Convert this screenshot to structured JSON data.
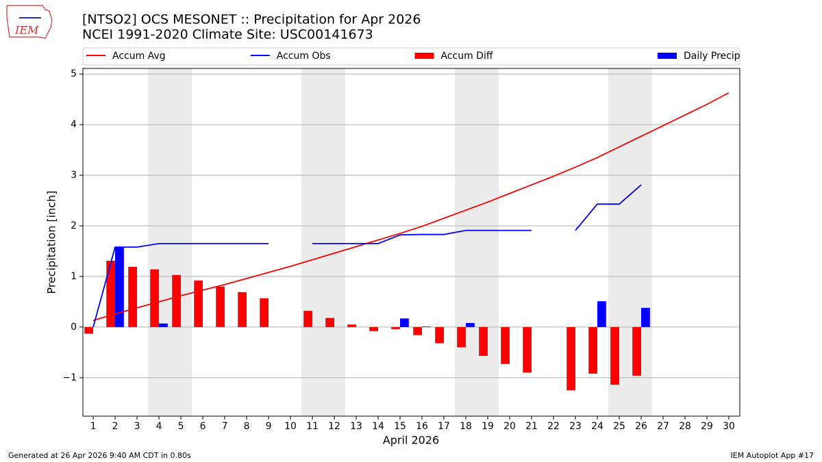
{
  "logo_text": "IEM",
  "footer_left": "Generated at 26 Apr 2026 9:40 AM CDT in 0.80s",
  "footer_right": "IEM Autoplot App #17",
  "chart_data": {
    "type": "combo",
    "title": "[NTSO2] OCS MESONET :: Precipitation for Apr 2026",
    "subtitle": "NCEI 1991-2020 Climate Site: USC00141673",
    "x_label": "April 2026",
    "y_label": "Precipitation [inch]",
    "x": [
      1,
      2,
      3,
      4,
      5,
      6,
      7,
      8,
      9,
      10,
      11,
      12,
      13,
      14,
      15,
      16,
      17,
      18,
      19,
      20,
      21,
      22,
      23,
      24,
      25,
      26,
      27,
      28,
      29,
      30
    ],
    "xlim": [
      0.53,
      30.5
    ],
    "xticks": [
      1,
      2,
      3,
      4,
      5,
      6,
      7,
      8,
      9,
      10,
      11,
      12,
      13,
      14,
      15,
      16,
      17,
      18,
      19,
      20,
      21,
      22,
      23,
      24,
      25,
      26,
      27,
      28,
      29,
      30
    ],
    "ylim": [
      -1.76,
      5.11
    ],
    "yticks": [
      {
        "value": -1,
        "label": "−1"
      },
      0,
      1,
      2,
      3,
      4,
      5
    ],
    "grid": true,
    "shaded_spans": [
      [
        3.5,
        5.5
      ],
      [
        10.5,
        12.5
      ],
      [
        17.5,
        19.5
      ],
      [
        24.5,
        26.5
      ]
    ],
    "shade_color": "#ebebeb",
    "series": [
      {
        "name": "Accum Avg",
        "type": "line",
        "color": "#ff0000",
        "values": [
          0.13,
          0.26,
          0.38,
          0.5,
          0.62,
          0.73,
          0.84,
          0.96,
          1.08,
          1.2,
          1.33,
          1.46,
          1.59,
          1.72,
          1.85,
          1.99,
          2.15,
          2.31,
          2.47,
          2.64,
          2.81,
          2.98,
          3.16,
          3.35,
          3.56,
          3.77,
          3.98,
          4.19,
          4.4,
          4.63
        ]
      },
      {
        "name": "Accum Obs",
        "type": "line",
        "color": "#0000ff",
        "values": [
          0,
          1.58,
          1.58,
          1.65,
          1.65,
          1.65,
          1.65,
          1.65,
          1.65,
          null,
          1.65,
          1.65,
          1.65,
          1.65,
          1.82,
          1.83,
          1.83,
          1.91,
          1.91,
          1.91,
          1.91,
          null,
          1.91,
          2.43,
          2.43,
          2.81,
          null,
          null,
          null,
          null
        ]
      },
      {
        "name": "Accum Diff",
        "type": "bar",
        "color": "#ff0000",
        "values": [
          -0.13,
          1.31,
          1.19,
          1.14,
          1.03,
          0.92,
          0.8,
          0.69,
          0.57,
          null,
          0.32,
          0.18,
          0.05,
          -0.08,
          -0.04,
          -0.16,
          -0.32,
          -0.4,
          -0.57,
          -0.73,
          -0.9,
          null,
          -1.25,
          -0.92,
          -1.14,
          -0.96,
          null,
          null,
          null,
          null
        ]
      },
      {
        "name": "Daily Precip",
        "type": "bar",
        "color": "#0000ff",
        "values": [
          0,
          1.58,
          0,
          0.07,
          0,
          0,
          0,
          0,
          0,
          null,
          0,
          0,
          0,
          0,
          0.17,
          0.01,
          0,
          0.08,
          0,
          0,
          0,
          null,
          0,
          0.51,
          0,
          0.38,
          null,
          null,
          null,
          null
        ]
      }
    ]
  }
}
